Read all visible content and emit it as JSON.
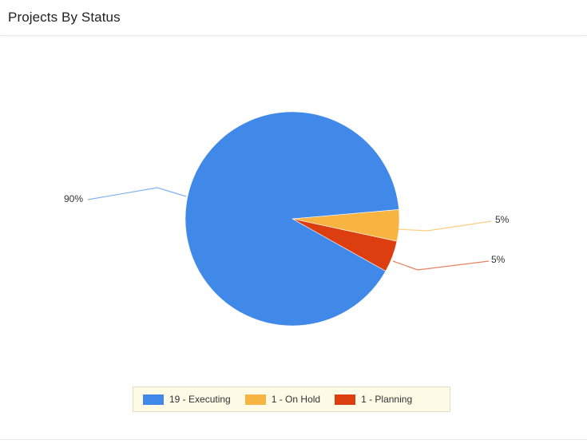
{
  "panel": {
    "title": "Projects By Status"
  },
  "chart_data": {
    "type": "pie",
    "categories": [
      "19 - Executing",
      "1 - On Hold",
      "1 - Planning"
    ],
    "values": [
      19,
      1,
      1
    ],
    "labels": [
      "90%",
      "5%",
      "5%"
    ],
    "colors": [
      "#4189e8",
      "#f7b440",
      "#dc3e10"
    ],
    "legend_position": "bottom",
    "title": ""
  }
}
